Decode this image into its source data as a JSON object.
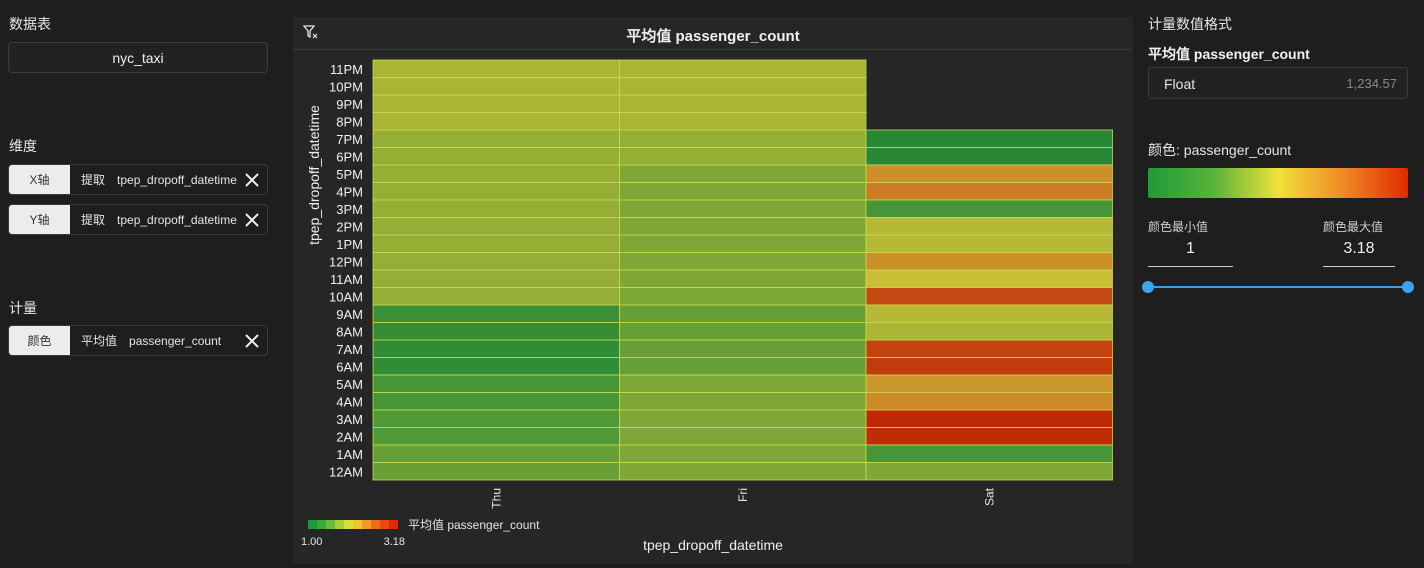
{
  "left": {
    "datasource_title": "数据表",
    "datasource_value": "nyc_taxi",
    "dimension_title": "维度",
    "dimensions": [
      {
        "tag": "X轴",
        "op": "提取",
        "field": "tpep_dropoff_datetime"
      },
      {
        "tag": "Y轴",
        "op": "提取",
        "field": "tpep_dropoff_datetime"
      }
    ],
    "measure_title": "计量",
    "measures": [
      {
        "tag": "颜色",
        "op": "平均值",
        "field": "passenger_count"
      }
    ]
  },
  "chart_panel": {
    "title": "平均值 passenger_count",
    "filter_icon": "filter-clear-icon"
  },
  "chart_data": {
    "type": "heatmap",
    "title": "平均值 passenger_count",
    "xlabel": "tpep_dropoff_datetime",
    "ylabel": "tpep_dropoff_datetime",
    "x_categories": [
      "Thu",
      "Fri",
      "Sat"
    ],
    "y_categories": [
      "11PM",
      "10PM",
      "9PM",
      "8PM",
      "7PM",
      "6PM",
      "5PM",
      "4PM",
      "3PM",
      "2PM",
      "1PM",
      "12PM",
      "11AM",
      "10AM",
      "9AM",
      "8AM",
      "7AM",
      "6AM",
      "5AM",
      "4AM",
      "3AM",
      "2AM",
      "1AM",
      "12AM"
    ],
    "values": [
      [
        1.95,
        1.95,
        null
      ],
      [
        1.95,
        1.95,
        null
      ],
      [
        1.95,
        1.95,
        null
      ],
      [
        1.95,
        1.95,
        null
      ],
      [
        1.85,
        1.85,
        1.1
      ],
      [
        1.85,
        1.85,
        1.1
      ],
      [
        1.85,
        1.75,
        2.45
      ],
      [
        1.85,
        1.75,
        2.6
      ],
      [
        1.85,
        1.75,
        1.45
      ],
      [
        1.85,
        1.75,
        2.0
      ],
      [
        1.85,
        1.75,
        2.0
      ],
      [
        1.85,
        1.75,
        2.45
      ],
      [
        1.85,
        1.75,
        2.1
      ],
      [
        1.85,
        1.75,
        2.95
      ],
      [
        1.3,
        1.65,
        2.0
      ],
      [
        1.25,
        1.65,
        1.95
      ],
      [
        1.2,
        1.65,
        3.0
      ],
      [
        1.2,
        1.65,
        3.05
      ],
      [
        1.45,
        1.75,
        2.4
      ],
      [
        1.45,
        1.75,
        2.5
      ],
      [
        1.55,
        1.75,
        3.18
      ],
      [
        1.55,
        1.75,
        3.15
      ],
      [
        1.65,
        1.75,
        1.45
      ],
      [
        1.65,
        1.75,
        1.75
      ]
    ],
    "color_range": [
      1.0,
      3.18
    ],
    "legend": {
      "min_label": "1.00",
      "max_label": "3.18",
      "title": "平均值 passenger_count"
    }
  },
  "right": {
    "format_title": "计量数值格式",
    "measure_name": "平均值 passenger_count",
    "format_type": "Float",
    "format_sample": "1,234.57",
    "color_label": "颜色: passenger_count",
    "min_label": "颜色最小值",
    "max_label": "颜色最大值",
    "min_value": "1",
    "max_value": "3.18",
    "slider_range": [
      0,
      1
    ]
  }
}
